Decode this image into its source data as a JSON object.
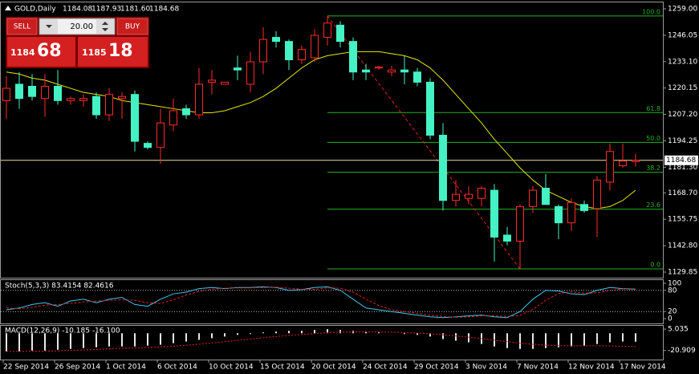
{
  "trade_panel": {
    "sell": "SELL",
    "buy": "BUY",
    "lots": "20.00",
    "sell_small": "1184",
    "sell_big": "68",
    "buy_small": "1185",
    "buy_big": "18"
  },
  "chart_data": [
    {
      "type": "candlestick",
      "title": "GOLD,Daily",
      "header_values": [
        "1184.08",
        "1187.93",
        "1181.60",
        "1184.68"
      ],
      "categories": [
        "22 Sep 2014",
        null,
        null,
        null,
        "26 Sep 2014",
        null,
        null,
        null,
        "1 Oct 2014",
        null,
        null,
        null,
        "6 Oct 2014",
        null,
        null,
        null,
        "10 Oct 2014",
        null,
        null,
        null,
        "15 Oct 2014",
        null,
        null,
        null,
        "20 Oct 2014",
        null,
        null,
        null,
        "24 Oct 2014",
        null,
        null,
        null,
        "29 Oct 2014",
        null,
        null,
        null,
        "3 Nov 2014",
        null,
        null,
        null,
        "7 Nov 2014",
        null,
        null,
        null,
        "12 Nov 2014",
        null,
        null,
        null,
        "17 Nov 2014",
        null
      ],
      "open": [
        1214,
        1222,
        1221,
        1215,
        1221,
        1214,
        1214,
        1216,
        1207,
        1215,
        1217,
        1193,
        1191,
        1202,
        1210,
        1207,
        1223,
        1222,
        1230,
        1222,
        1233,
        1245,
        1243,
        1234,
        1235,
        1245,
        1251,
        1243,
        1229,
        1230,
        1228,
        1229,
        1228,
        1223,
        1197,
        1165,
        1166,
        1166,
        1170,
        1148,
        1145,
        1162,
        1171,
        1162,
        1154,
        1163,
        1161,
        1174,
        1182,
        1184.08
      ],
      "high": [
        1226,
        1228,
        1227,
        1227,
        1229,
        1216,
        1217,
        1218,
        1220,
        1218,
        1219,
        1194,
        1210,
        1215,
        1212,
        1230,
        1229,
        1223,
        1236,
        1238,
        1250,
        1248,
        1244,
        1241,
        1249,
        1255.5,
        1253,
        1245,
        1232,
        1231,
        1231,
        1236,
        1230,
        1225,
        1203,
        1175,
        1172,
        1172,
        1173,
        1152,
        1163,
        1172,
        1178,
        1163,
        1166,
        1165,
        1177,
        1193,
        1193,
        1187.93
      ],
      "low": [
        1205,
        1210,
        1214,
        1206,
        1212,
        1212,
        1211,
        1205,
        1204,
        1205,
        1189,
        1190,
        1183,
        1199,
        1205,
        1205,
        1217,
        1222,
        1224,
        1218,
        1227,
        1240,
        1229,
        1232,
        1233,
        1241,
        1240,
        1224,
        1224,
        1229,
        1226,
        1222,
        1221,
        1195,
        1160,
        1162,
        1163,
        1162,
        1135,
        1143,
        1131.4,
        1159,
        1163,
        1146,
        1150,
        1159,
        1147,
        1170,
        1181,
        1181.6
      ],
      "close": [
        1220,
        1215,
        1216,
        1221,
        1214,
        1215,
        1215,
        1207,
        1217,
        1216,
        1194,
        1191,
        1203,
        1209,
        1207,
        1222,
        1224,
        1223,
        1229,
        1233,
        1244,
        1243,
        1234,
        1239,
        1246,
        1252,
        1243,
        1228,
        1228,
        1230.5,
        1229,
        1228,
        1223,
        1197,
        1165,
        1168,
        1168,
        1171,
        1147,
        1145,
        1162,
        1170,
        1163,
        1154,
        1164,
        1160,
        1175,
        1189,
        1184.3,
        1184.68
      ],
      "bull_color": "#ff2a2a",
      "bear_color": "#44f2c4",
      "ma": {
        "color": "#e6e600",
        "values": [
          1228,
          1227,
          1225,
          1224,
          1222,
          1220,
          1218,
          1217,
          1216,
          1214,
          1213,
          1212,
          1211,
          1210,
          1209,
          1208,
          1208,
          1209,
          1211,
          1213,
          1216,
          1220,
          1225,
          1230,
          1234,
          1236,
          1237,
          1238,
          1238,
          1238,
          1237,
          1236,
          1234,
          1230,
          1224,
          1217,
          1210,
          1203,
          1195,
          1188,
          1181,
          1175,
          1170,
          1167,
          1164,
          1162,
          1161,
          1162,
          1165,
          1170
        ]
      },
      "bid": 1184.68,
      "bid_color": "#e8e0a0",
      "fib": {
        "color": "#22b422",
        "levels": [
          "0.0",
          "23.6",
          "38.2",
          "50.0",
          "61.8",
          "100.0"
        ],
        "prices": [
          1131.4,
          1160.7,
          1178.8,
          1193.5,
          1208.1,
          1255.5
        ],
        "trend_color": "#e02020"
      },
      "ylim": [
        1127.09,
        1262.15
      ],
      "yticks": [
        {
          "value": 1259,
          "label": "1259.00"
        },
        {
          "value": 1246.05,
          "label": "1246.05"
        },
        {
          "value": 1233.1,
          "label": "1233.10"
        },
        {
          "value": 1220.15,
          "label": "1220.15"
        },
        {
          "value": 1207.2,
          "label": "1207.20"
        },
        {
          "value": 1194.25,
          "label": "1194.25"
        },
        {
          "value": 1181.3,
          "label": "1181.30"
        },
        {
          "value": 1168.7,
          "label": "1168.70"
        },
        {
          "value": 1155.75,
          "label": "1155.75"
        },
        {
          "value": 1142.8,
          "label": "1142.80"
        },
        {
          "value": 1129.85,
          "label": "1129.85"
        }
      ]
    },
    {
      "type": "line",
      "title": "Stoch(5,3,3) 83.4154 82.4616",
      "ylim": [
        -13.6,
        109
      ],
      "yticks": [
        100,
        80,
        20,
        0
      ],
      "levels": [
        80,
        20
      ],
      "series": [
        {
          "color": "#40c8f0",
          "dash": false,
          "values": [
            25,
            30,
            40,
            45,
            35,
            50,
            55,
            45,
            55,
            60,
            40,
            35,
            55,
            70,
            75,
            85,
            88,
            85,
            88,
            88,
            90,
            88,
            80,
            82,
            88,
            90,
            80,
            55,
            30,
            25,
            20,
            15,
            10,
            5,
            3,
            5,
            8,
            10,
            5,
            3,
            20,
            55,
            80,
            78,
            70,
            68,
            80,
            88,
            85,
            83.4154
          ]
        },
        {
          "color": "#e02020",
          "dash": true,
          "values": [
            30,
            28,
            32,
            38,
            40,
            43,
            47,
            50,
            52,
            53,
            52,
            45,
            43,
            53,
            67,
            77,
            83,
            86,
            87,
            87,
            88,
            89,
            86,
            83,
            83,
            87,
            86,
            75,
            55,
            37,
            25,
            20,
            15,
            10,
            6,
            4,
            5,
            8,
            8,
            6,
            9,
            26,
            52,
            71,
            76,
            72,
            73,
            79,
            84,
            82.4616
          ]
        }
      ]
    },
    {
      "type": "bar",
      "title": "MACD(12,26,9) -10.185 -16.100",
      "ylim": [
        -31.9,
        9.0
      ],
      "yticks": [
        5.035,
        -20.909
      ],
      "series": [
        {
          "color": "#e8e8e8",
          "style": "bar",
          "values": [
            -22,
            -22,
            -21,
            -21,
            -20,
            -19,
            -18,
            -17,
            -16,
            -16,
            -16,
            -15,
            -14,
            -12,
            -10,
            -8,
            -6,
            -4,
            -2,
            -1,
            1,
            2,
            3,
            3,
            4,
            5,
            4,
            3,
            2,
            1,
            0,
            -1,
            -2,
            -4,
            -7,
            -9,
            -11,
            -13,
            -16,
            -18,
            -19,
            -19,
            -18,
            -17,
            -16,
            -15,
            -13,
            -11,
            -10,
            -10.185
          ]
        },
        {
          "color": "#e02020",
          "style": "line",
          "values": [
            -22,
            -22,
            -21.8,
            -21.6,
            -21.3,
            -20.8,
            -20.3,
            -19.6,
            -18.9,
            -18.3,
            -17.8,
            -17.2,
            -16.6,
            -15.7,
            -14.6,
            -13.3,
            -11.8,
            -10.2,
            -8.6,
            -7.1,
            -5.5,
            -4,
            -2.6,
            -1.5,
            -0.4,
            0.7,
            1.4,
            1.7,
            1.8,
            1.6,
            1.3,
            0.8,
            0.2,
            -0.6,
            -1.9,
            -3.3,
            -4.8,
            -6.4,
            -8.3,
            -10.2,
            -12,
            -13.4,
            -14.4,
            -15,
            -15.2,
            -15.2,
            -15.2,
            -15.4,
            -15.8,
            -16.1
          ]
        }
      ]
    }
  ]
}
